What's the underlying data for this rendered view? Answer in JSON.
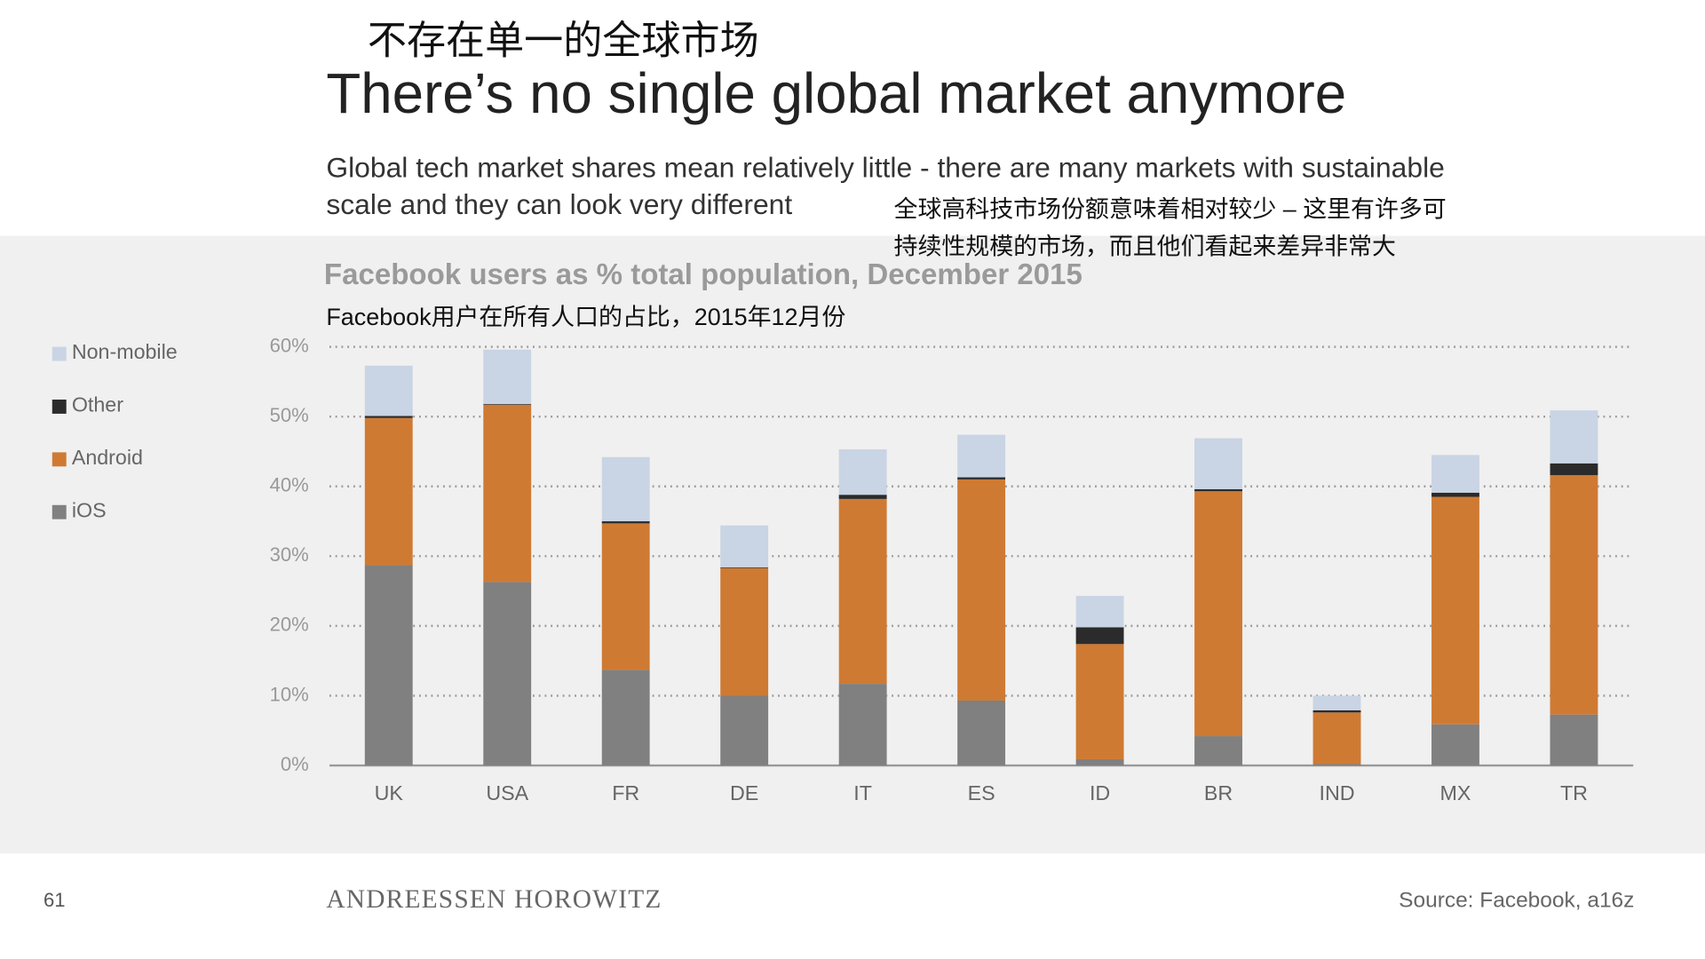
{
  "chart_data": {
    "type": "bar",
    "stacked": true,
    "title_zh": "不存在单一的全球市场",
    "title": "There’s no single global market anymore",
    "subtitle": [
      "Global tech market shares mean relatively little  - there are many markets with sustainable",
      "scale and they can look very different"
    ],
    "subtitle_zh": [
      "全球高科技市场份额意味着相对较少 – 这里有许多可",
      "持续性规模的市场，而且他们看起来差异非常大"
    ],
    "chart_title": "Facebook users as % total population, December 2015",
    "chart_title_zh": "Facebook用户在所有人口的占比，2015年12月份",
    "categories": [
      "UK",
      "USA",
      "FR",
      "DE",
      "IT",
      "ES",
      "ID",
      "BR",
      "IND",
      "MX",
      "TR"
    ],
    "series": [
      {
        "name": "iOS",
        "color": "#808080",
        "values": [
          28.7,
          26.3,
          13.7,
          10.0,
          11.7,
          9.3,
          0.9,
          4.2,
          0.2,
          5.9,
          7.3
        ]
      },
      {
        "name": "Android",
        "color": "#cf7a33",
        "values": [
          21.1,
          25.4,
          21.0,
          18.3,
          26.5,
          31.7,
          16.5,
          35.1,
          7.4,
          32.6,
          34.3
        ]
      },
      {
        "name": "Other",
        "color": "#2b2b2b",
        "values": [
          0.3,
          0.1,
          0.3,
          0.1,
          0.6,
          0.3,
          2.4,
          0.3,
          0.3,
          0.6,
          1.7
        ]
      },
      {
        "name": "Non-mobile",
        "color": "#c9d4e4",
        "values": [
          7.2,
          7.8,
          9.2,
          6.0,
          6.5,
          6.1,
          4.5,
          7.3,
          2.1,
          5.4,
          7.6
        ]
      }
    ],
    "ylim": [
      0,
      60
    ],
    "yticks": [
      {
        "value": 0,
        "label": "0%"
      },
      {
        "value": 10,
        "label": "10%"
      },
      {
        "value": 20,
        "label": "20%"
      },
      {
        "value": 30,
        "label": "30%"
      },
      {
        "value": 40,
        "label": "40%"
      },
      {
        "value": 50,
        "label": "50%"
      },
      {
        "value": 60,
        "label": "60%"
      }
    ],
    "grid": true,
    "legend": "left"
  },
  "footer": {
    "page": "61",
    "brand": "ANDREESSEN HOROWITZ",
    "source": "Source: Facebook, a16z"
  }
}
